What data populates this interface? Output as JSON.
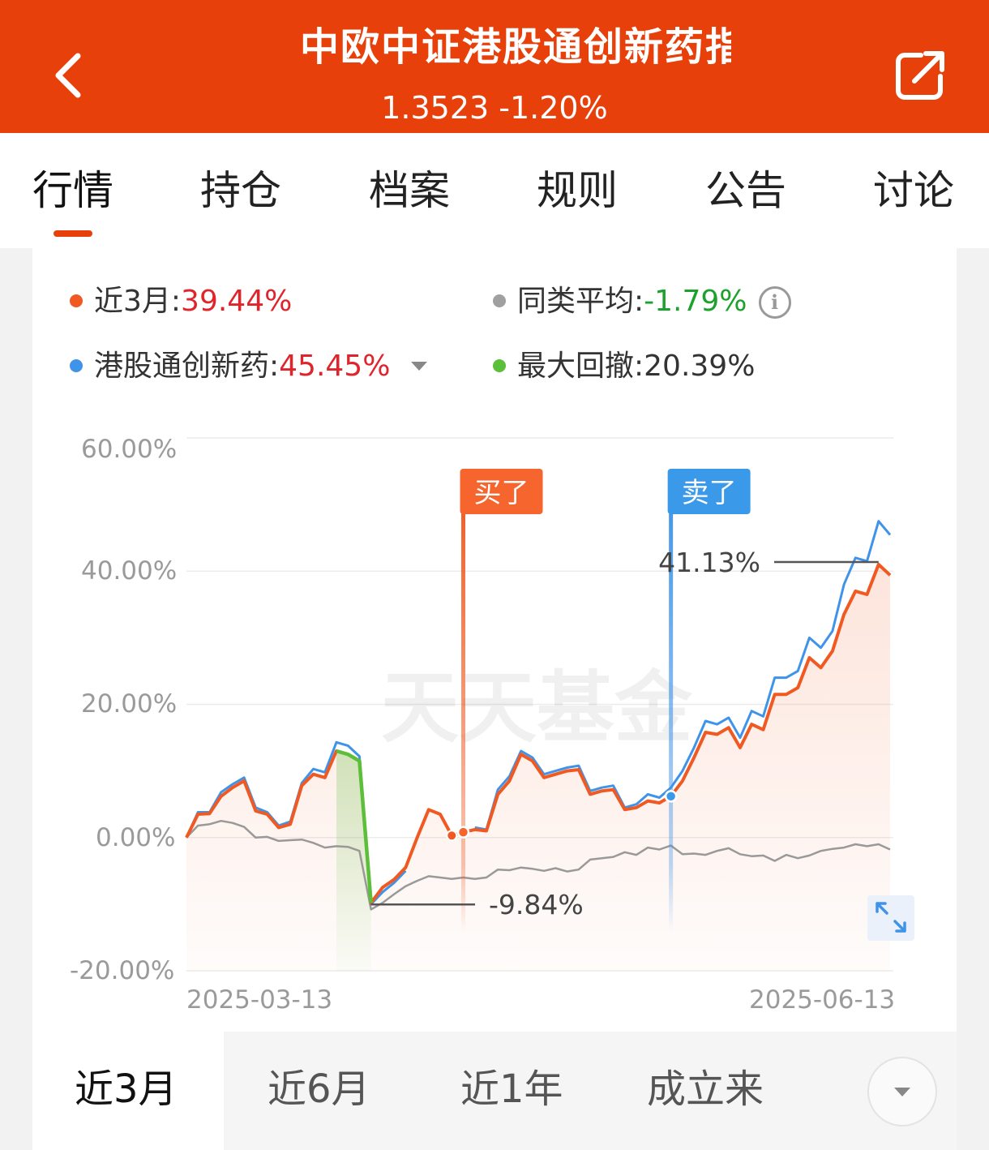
{
  "header": {
    "title": "中欧中证港股通创新药指",
    "subtitle": "1.3523 -1.20%",
    "back_icon": "chevron-left-icon",
    "share_icon": "share-icon",
    "color": "#e8400b"
  },
  "tabs": [
    {
      "label": "行情",
      "active": true
    },
    {
      "label": "持仓"
    },
    {
      "label": "档案"
    },
    {
      "label": "规则"
    },
    {
      "label": "公告"
    },
    {
      "label": "讨论"
    }
  ],
  "legend": {
    "fund_label": "近3月:",
    "fund_value": "39.44%",
    "peer_label": "同类平均:",
    "peer_value": "-1.79%",
    "index_label": "港股通创新药:",
    "index_value": "45.45%",
    "drawdown_label": "最大回撤:",
    "drawdown_value": "20.39%",
    "info_icon": "info-icon",
    "dropdown_icon": "caret-down-icon"
  },
  "chart_data": {
    "type": "line",
    "x_start_label": "2025-03-13",
    "x_end_label": "2025-06-13",
    "y_ticks": [
      "60.00%",
      "40.00%",
      "20.00%",
      "0.00%",
      "-20.00%"
    ],
    "ylim": [
      -20,
      60
    ],
    "watermark": "天天基金",
    "series": [
      {
        "name": "近3月",
        "color": "#f05a22",
        "values": [
          0,
          3.5,
          3.6,
          6.2,
          7.5,
          8.5,
          4,
          3.5,
          1.5,
          2,
          7.8,
          9.5,
          9,
          13,
          12.5,
          11.5,
          -9.8,
          -7.5,
          -6.3,
          -4.5,
          0,
          4.2,
          3.5,
          0.3,
          0.8,
          1.2,
          1.0,
          6.5,
          8.5,
          12.5,
          11.5,
          9,
          9.5,
          10,
          10.2,
          6.5,
          7,
          7.2,
          4.2,
          4.5,
          5.5,
          5.2,
          6.2,
          8.5,
          12,
          15.8,
          15.5,
          16.5,
          13.5,
          17,
          16.2,
          21.5,
          21.5,
          22.5,
          27,
          25.5,
          28,
          33.5,
          37,
          36.5,
          41,
          39.4
        ]
      },
      {
        "name": "港股通创新药",
        "color": "#3f93e8",
        "values": [
          0,
          3.8,
          3.8,
          6.8,
          8.0,
          9.0,
          4.5,
          3.8,
          1.8,
          2.4,
          8.2,
          10.3,
          9.8,
          14.3,
          13.8,
          12.2,
          -10.0,
          -8.2,
          -6.8,
          -5.0,
          null,
          null,
          null,
          null,
          null,
          1.5,
          1.2,
          7.2,
          9.2,
          13.0,
          12.0,
          9.5,
          10.0,
          10.5,
          10.8,
          7.0,
          7.5,
          7.8,
          4.5,
          5.0,
          6.5,
          6.0,
          7.5,
          10.0,
          13.5,
          17.5,
          17.0,
          18.0,
          15.0,
          19.0,
          18.2,
          24.0,
          24.0,
          25.0,
          30.0,
          28.5,
          31.0,
          38.0,
          42.0,
          41.5,
          47.5,
          45.45
        ]
      },
      {
        "name": "同类平均",
        "color": "#999999",
        "values": [
          0,
          1.8,
          2.0,
          2.5,
          2.2,
          1.6,
          0,
          0.1,
          -0.5,
          -0.4,
          -0.3,
          -0.8,
          -1.5,
          -1.3,
          -1.4,
          -2.0,
          -10.8,
          -9.8,
          -8.5,
          -7.3,
          -6.5,
          -5.8,
          -6.0,
          -6.2,
          -6.0,
          -6.2,
          -6.0,
          -4.8,
          -4.9,
          -4.5,
          -4.7,
          -5.0,
          -4.6,
          -5.1,
          -4.8,
          -3.3,
          -3.1,
          -2.9,
          -2.2,
          -2.6,
          -1.5,
          -1.8,
          -1.2,
          -2.5,
          -2.4,
          -2.6,
          -2.0,
          -1.6,
          -2.5,
          -2.8,
          -2.7,
          -3.5,
          -2.6,
          -3.1,
          -2.7,
          -2.0,
          -1.7,
          -1.5,
          -1.0,
          -1.3,
          -1.0,
          -1.79
        ]
      }
    ],
    "buy_marker": {
      "label": "买了",
      "index": 24
    },
    "sell_marker": {
      "label": "卖了",
      "index": 42
    },
    "max_label": "41.13%",
    "min_label": "-9.84%",
    "drawdown_segment": {
      "from_index": 13,
      "to_index": 16,
      "color": "#5cbf3a"
    },
    "expand_icon": "expand-icon"
  },
  "periods": [
    {
      "label": "近3月",
      "active": true
    },
    {
      "label": "近6月"
    },
    {
      "label": "近1年"
    },
    {
      "label": "成立来"
    }
  ],
  "more_icon": "caret-down-icon"
}
